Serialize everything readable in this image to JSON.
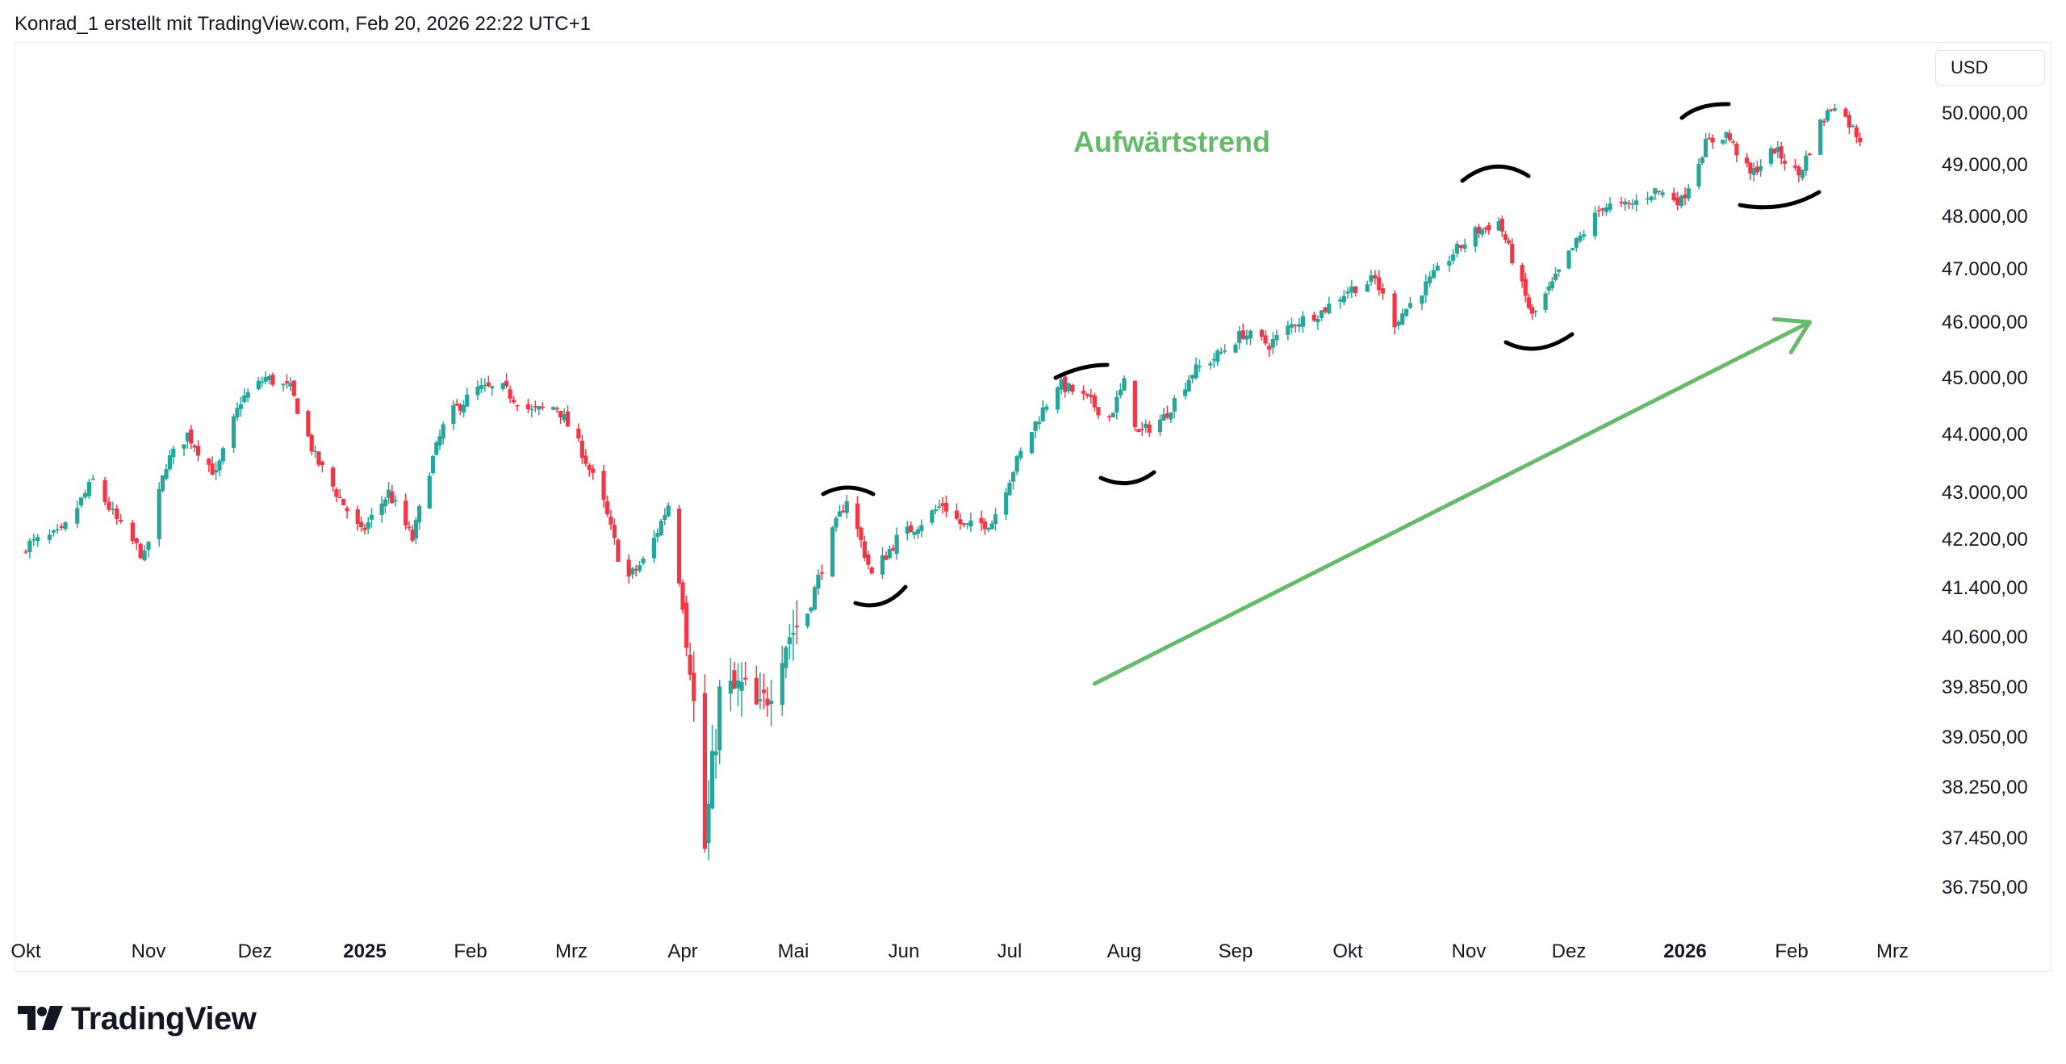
{
  "header": {
    "attribution": "Konrad_1 erstellt mit TradingView.com, Feb 20, 2026 22:22 UTC+1"
  },
  "price_axis": {
    "currency": "USD"
  },
  "brand": {
    "name": "TradingView"
  },
  "colors": {
    "up": "#26a69a",
    "down": "#f23645",
    "annotation_green": "#66bb6a",
    "marker_black": "#000000"
  },
  "chart_data": {
    "type": "candlestick",
    "title": "",
    "y_ticks": [
      "50.000,00",
      "49.000,00",
      "48.000,00",
      "47.000,00",
      "46.000,00",
      "45.000,00",
      "44.000,00",
      "43.000,00",
      "42.200,00",
      "41.400,00",
      "40.600,00",
      "39.850,00",
      "39.050,00",
      "38.250,00",
      "37.450,00",
      "36.750,00"
    ],
    "y_tick_values": [
      50000,
      49000,
      48000,
      47000,
      46000,
      45000,
      44000,
      43000,
      42200,
      41400,
      40600,
      39850,
      39050,
      38250,
      37450,
      36750
    ],
    "x_ticks": [
      {
        "label": "Okt",
        "date": "2024-10-01",
        "bold": false
      },
      {
        "label": "Nov",
        "date": "2024-11-01",
        "bold": false
      },
      {
        "label": "Dez",
        "date": "2024-12-01",
        "bold": false
      },
      {
        "label": "2025",
        "date": "2025-01-01",
        "bold": true
      },
      {
        "label": "Feb",
        "date": "2025-02-01",
        "bold": false
      },
      {
        "label": "Mrz",
        "date": "2025-03-01",
        "bold": false
      },
      {
        "label": "Apr",
        "date": "2025-04-01",
        "bold": false
      },
      {
        "label": "Mai",
        "date": "2025-05-01",
        "bold": false
      },
      {
        "label": "Jun",
        "date": "2025-06-01",
        "bold": false
      },
      {
        "label": "Jul",
        "date": "2025-07-01",
        "bold": false
      },
      {
        "label": "Aug",
        "date": "2025-08-01",
        "bold": false
      },
      {
        "label": "Sep",
        "date": "2025-09-01",
        "bold": false
      },
      {
        "label": "Okt",
        "date": "2025-10-01",
        "bold": false
      },
      {
        "label": "Nov",
        "date": "2025-11-01",
        "bold": false
      },
      {
        "label": "Dez",
        "date": "2025-12-01",
        "bold": false
      },
      {
        "label": "2026",
        "date": "2026-01-01",
        "bold": true
      },
      {
        "label": "Feb",
        "date": "2026-02-01",
        "bold": false
      },
      {
        "label": "Mrz",
        "date": "2026-03-01",
        "bold": false
      }
    ],
    "closes": [
      {
        "date": "2024-10-01",
        "close": 42100
      },
      {
        "date": "2024-10-10",
        "close": 42300
      },
      {
        "date": "2024-10-18",
        "close": 43200
      },
      {
        "date": "2024-10-25",
        "close": 42400
      },
      {
        "date": "2024-10-31",
        "close": 41900
      },
      {
        "date": "2024-11-06",
        "close": 43500
      },
      {
        "date": "2024-11-12",
        "close": 44000
      },
      {
        "date": "2024-11-20",
        "close": 43300
      },
      {
        "date": "2024-11-27",
        "close": 44600
      },
      {
        "date": "2024-12-04",
        "close": 45000
      },
      {
        "date": "2024-12-11",
        "close": 44800
      },
      {
        "date": "2024-12-18",
        "close": 43600
      },
      {
        "date": "2024-12-24",
        "close": 43000
      },
      {
        "date": "2024-12-31",
        "close": 42300
      },
      {
        "date": "2025-01-08",
        "close": 43000
      },
      {
        "date": "2025-01-15",
        "close": 42200
      },
      {
        "date": "2025-01-20",
        "close": 43400
      },
      {
        "date": "2025-01-25",
        "close": 44300
      },
      {
        "date": "2025-02-03",
        "close": 44800
      },
      {
        "date": "2025-02-10",
        "close": 44800
      },
      {
        "date": "2025-02-18",
        "close": 44400
      },
      {
        "date": "2025-02-25",
        "close": 44500
      },
      {
        "date": "2025-03-04",
        "close": 43700
      },
      {
        "date": "2025-03-10",
        "close": 42800
      },
      {
        "date": "2025-03-16",
        "close": 41500
      },
      {
        "date": "2025-03-22",
        "close": 41900
      },
      {
        "date": "2025-03-28",
        "close": 42800
      },
      {
        "date": "2025-04-03",
        "close": 40300
      },
      {
        "date": "2025-04-07",
        "close": 37300
      },
      {
        "date": "2025-04-11",
        "close": 39700
      },
      {
        "date": "2025-04-17",
        "close": 39800
      },
      {
        "date": "2025-04-22",
        "close": 39400
      },
      {
        "date": "2025-04-28",
        "close": 40500
      },
      {
        "date": "2025-05-05",
        "close": 41000
      },
      {
        "date": "2025-05-12",
        "close": 42300
      },
      {
        "date": "2025-05-16",
        "close": 42900
      },
      {
        "date": "2025-05-23",
        "close": 41600
      },
      {
        "date": "2025-05-30",
        "close": 42200
      },
      {
        "date": "2025-06-06",
        "close": 42500
      },
      {
        "date": "2025-06-12",
        "close": 42800
      },
      {
        "date": "2025-06-18",
        "close": 42400
      },
      {
        "date": "2025-06-26",
        "close": 42500
      },
      {
        "date": "2025-07-02",
        "close": 43400
      },
      {
        "date": "2025-07-08",
        "close": 44200
      },
      {
        "date": "2025-07-14",
        "close": 44900
      },
      {
        "date": "2025-07-20",
        "close": 44700
      },
      {
        "date": "2025-07-28",
        "close": 44300
      },
      {
        "date": "2025-08-01",
        "close": 44900
      },
      {
        "date": "2025-08-05",
        "close": 44000
      },
      {
        "date": "2025-08-12",
        "close": 44300
      },
      {
        "date": "2025-08-20",
        "close": 45100
      },
      {
        "date": "2025-08-27",
        "close": 45400
      },
      {
        "date": "2025-09-03",
        "close": 45800
      },
      {
        "date": "2025-09-10",
        "close": 45600
      },
      {
        "date": "2025-09-17",
        "close": 46000
      },
      {
        "date": "2025-09-24",
        "close": 46200
      },
      {
        "date": "2025-10-01",
        "close": 46600
      },
      {
        "date": "2025-10-08",
        "close": 46800
      },
      {
        "date": "2025-10-13",
        "close": 46000
      },
      {
        "date": "2025-10-20",
        "close": 46600
      },
      {
        "date": "2025-10-28",
        "close": 47300
      },
      {
        "date": "2025-11-03",
        "close": 47700
      },
      {
        "date": "2025-11-10",
        "close": 47900
      },
      {
        "date": "2025-11-14",
        "close": 47200
      },
      {
        "date": "2025-11-20",
        "close": 46100
      },
      {
        "date": "2025-11-26",
        "close": 46700
      },
      {
        "date": "2025-12-03",
        "close": 47500
      },
      {
        "date": "2025-12-10",
        "close": 48200
      },
      {
        "date": "2025-12-17",
        "close": 48200
      },
      {
        "date": "2025-12-24",
        "close": 48500
      },
      {
        "date": "2025-12-31",
        "close": 48300
      },
      {
        "date": "2026-01-07",
        "close": 49400
      },
      {
        "date": "2026-01-13",
        "close": 49600
      },
      {
        "date": "2026-01-20",
        "close": 48800
      },
      {
        "date": "2026-01-27",
        "close": 49300
      },
      {
        "date": "2026-02-03",
        "close": 48800
      },
      {
        "date": "2026-02-09",
        "close": 49800
      },
      {
        "date": "2026-02-13",
        "close": 50200
      },
      {
        "date": "2026-02-20",
        "close": 49500
      }
    ],
    "annotations": [
      {
        "type": "text",
        "text": "Aufwärtstrend"
      },
      {
        "type": "arrow",
        "direction": "up",
        "from": {
          "date": "2025-07-24",
          "price": 39900
        },
        "to": {
          "date": "2026-02-06",
          "price": 46000
        }
      }
    ]
  }
}
